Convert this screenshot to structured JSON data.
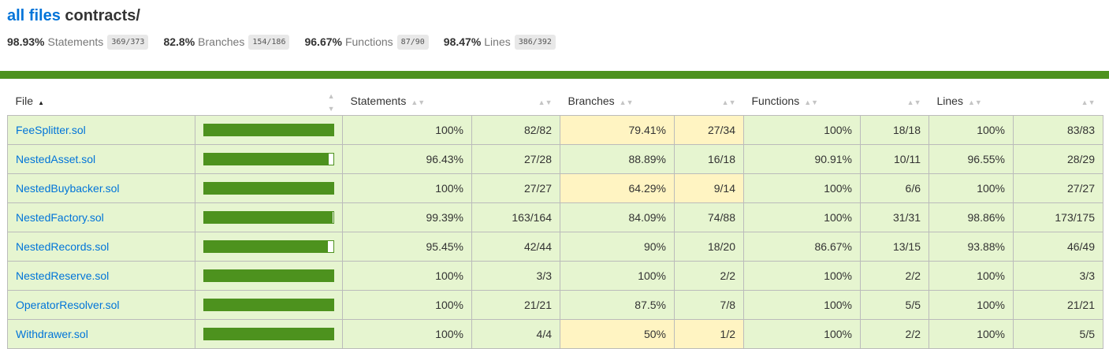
{
  "header": {
    "breadcrumb_link": "all files",
    "folder": "contracts/"
  },
  "summary": [
    {
      "pct": "98.93%",
      "label": "Statements",
      "fraction": "369/373"
    },
    {
      "pct": "82.8%",
      "label": "Branches",
      "fraction": "154/186"
    },
    {
      "pct": "96.67%",
      "label": "Functions",
      "fraction": "87/90"
    },
    {
      "pct": "98.47%",
      "label": "Lines",
      "fraction": "386/392"
    }
  ],
  "colors": {
    "high": "#4D921E",
    "high_bg": "#E6F5D0",
    "medium_bg": "#FFF4C2",
    "link": "#0074D9"
  },
  "table": {
    "headers": {
      "file": "File",
      "statements": "Statements",
      "branches": "Branches",
      "functions": "Functions",
      "lines": "Lines"
    },
    "rows": [
      {
        "file": "FeeSplitter.sol",
        "coverage": 1.0,
        "stmt_pct": "100%",
        "stmt_frac": "82/82",
        "br_pct": "79.41%",
        "br_frac": "27/34",
        "br_level": "medium",
        "fn_pct": "100%",
        "fn_frac": "18/18",
        "ln_pct": "100%",
        "ln_frac": "83/83"
      },
      {
        "file": "NestedAsset.sol",
        "coverage": 0.9643,
        "stmt_pct": "96.43%",
        "stmt_frac": "27/28",
        "br_pct": "88.89%",
        "br_frac": "16/18",
        "br_level": "high",
        "fn_pct": "90.91%",
        "fn_frac": "10/11",
        "ln_pct": "96.55%",
        "ln_frac": "28/29"
      },
      {
        "file": "NestedBuybacker.sol",
        "coverage": 1.0,
        "stmt_pct": "100%",
        "stmt_frac": "27/27",
        "br_pct": "64.29%",
        "br_frac": "9/14",
        "br_level": "medium",
        "fn_pct": "100%",
        "fn_frac": "6/6",
        "ln_pct": "100%",
        "ln_frac": "27/27"
      },
      {
        "file": "NestedFactory.sol",
        "coverage": 0.9939,
        "stmt_pct": "99.39%",
        "stmt_frac": "163/164",
        "br_pct": "84.09%",
        "br_frac": "74/88",
        "br_level": "high",
        "fn_pct": "100%",
        "fn_frac": "31/31",
        "ln_pct": "98.86%",
        "ln_frac": "173/175"
      },
      {
        "file": "NestedRecords.sol",
        "coverage": 0.9545,
        "stmt_pct": "95.45%",
        "stmt_frac": "42/44",
        "br_pct": "90%",
        "br_frac": "18/20",
        "br_level": "high",
        "fn_pct": "86.67%",
        "fn_frac": "13/15",
        "ln_pct": "93.88%",
        "ln_frac": "46/49"
      },
      {
        "file": "NestedReserve.sol",
        "coverage": 1.0,
        "stmt_pct": "100%",
        "stmt_frac": "3/3",
        "br_pct": "100%",
        "br_frac": "2/2",
        "br_level": "high",
        "fn_pct": "100%",
        "fn_frac": "2/2",
        "ln_pct": "100%",
        "ln_frac": "3/3"
      },
      {
        "file": "OperatorResolver.sol",
        "coverage": 1.0,
        "stmt_pct": "100%",
        "stmt_frac": "21/21",
        "br_pct": "87.5%",
        "br_frac": "7/8",
        "br_level": "high",
        "fn_pct": "100%",
        "fn_frac": "5/5",
        "ln_pct": "100%",
        "ln_frac": "21/21"
      },
      {
        "file": "Withdrawer.sol",
        "coverage": 1.0,
        "stmt_pct": "100%",
        "stmt_frac": "4/4",
        "br_pct": "50%",
        "br_frac": "1/2",
        "br_level": "medium",
        "fn_pct": "100%",
        "fn_frac": "2/2",
        "ln_pct": "100%",
        "ln_frac": "5/5"
      }
    ]
  }
}
